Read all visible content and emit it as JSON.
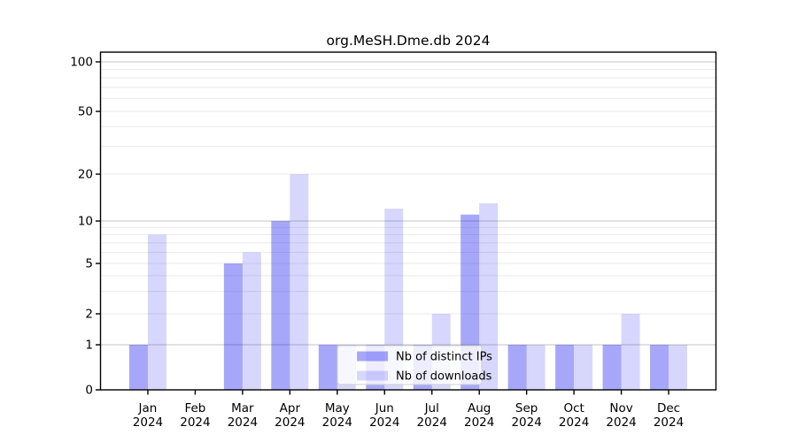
{
  "chart_data": {
    "type": "bar",
    "title": "org.MeSH.Dme.db 2024",
    "categories": [
      "Jan 2024",
      "Feb 2024",
      "Mar 2024",
      "Apr 2024",
      "May 2024",
      "Jun 2024",
      "Jul 2024",
      "Aug 2024",
      "Sep 2024",
      "Oct 2024",
      "Nov 2024",
      "Dec 2024"
    ],
    "series": [
      {
        "name": "Nb of distinct IPs",
        "color": "rgba(0,0,240,0.345)",
        "values": [
          1,
          0,
          5,
          10,
          1,
          1,
          1,
          11,
          1,
          1,
          1,
          1
        ]
      },
      {
        "name": "Nb of downloads",
        "color": "rgba(0,0,240,0.155)",
        "values": [
          8,
          0,
          6,
          20,
          1,
          12,
          2,
          13,
          1,
          1,
          2,
          1
        ]
      }
    ],
    "xlabel": "",
    "ylabel": "",
    "yticks": [
      0,
      1,
      2,
      5,
      10,
      20,
      50,
      100
    ],
    "ylim": [
      0,
      115
    ],
    "scale": "log-like (0,1,2,5,10,20,50,100)",
    "grid": true,
    "legend_position": "lower center inside plot",
    "colors": {
      "bar_distinct_ips_rendered": "#a8a8f6",
      "bar_downloads_rendered": "#d8d8fa",
      "major_gridline": "#c3c3c3",
      "minor_gridline": "#eaeaea",
      "axis_frame": "#000000",
      "legend_border": "#cccccc"
    }
  }
}
